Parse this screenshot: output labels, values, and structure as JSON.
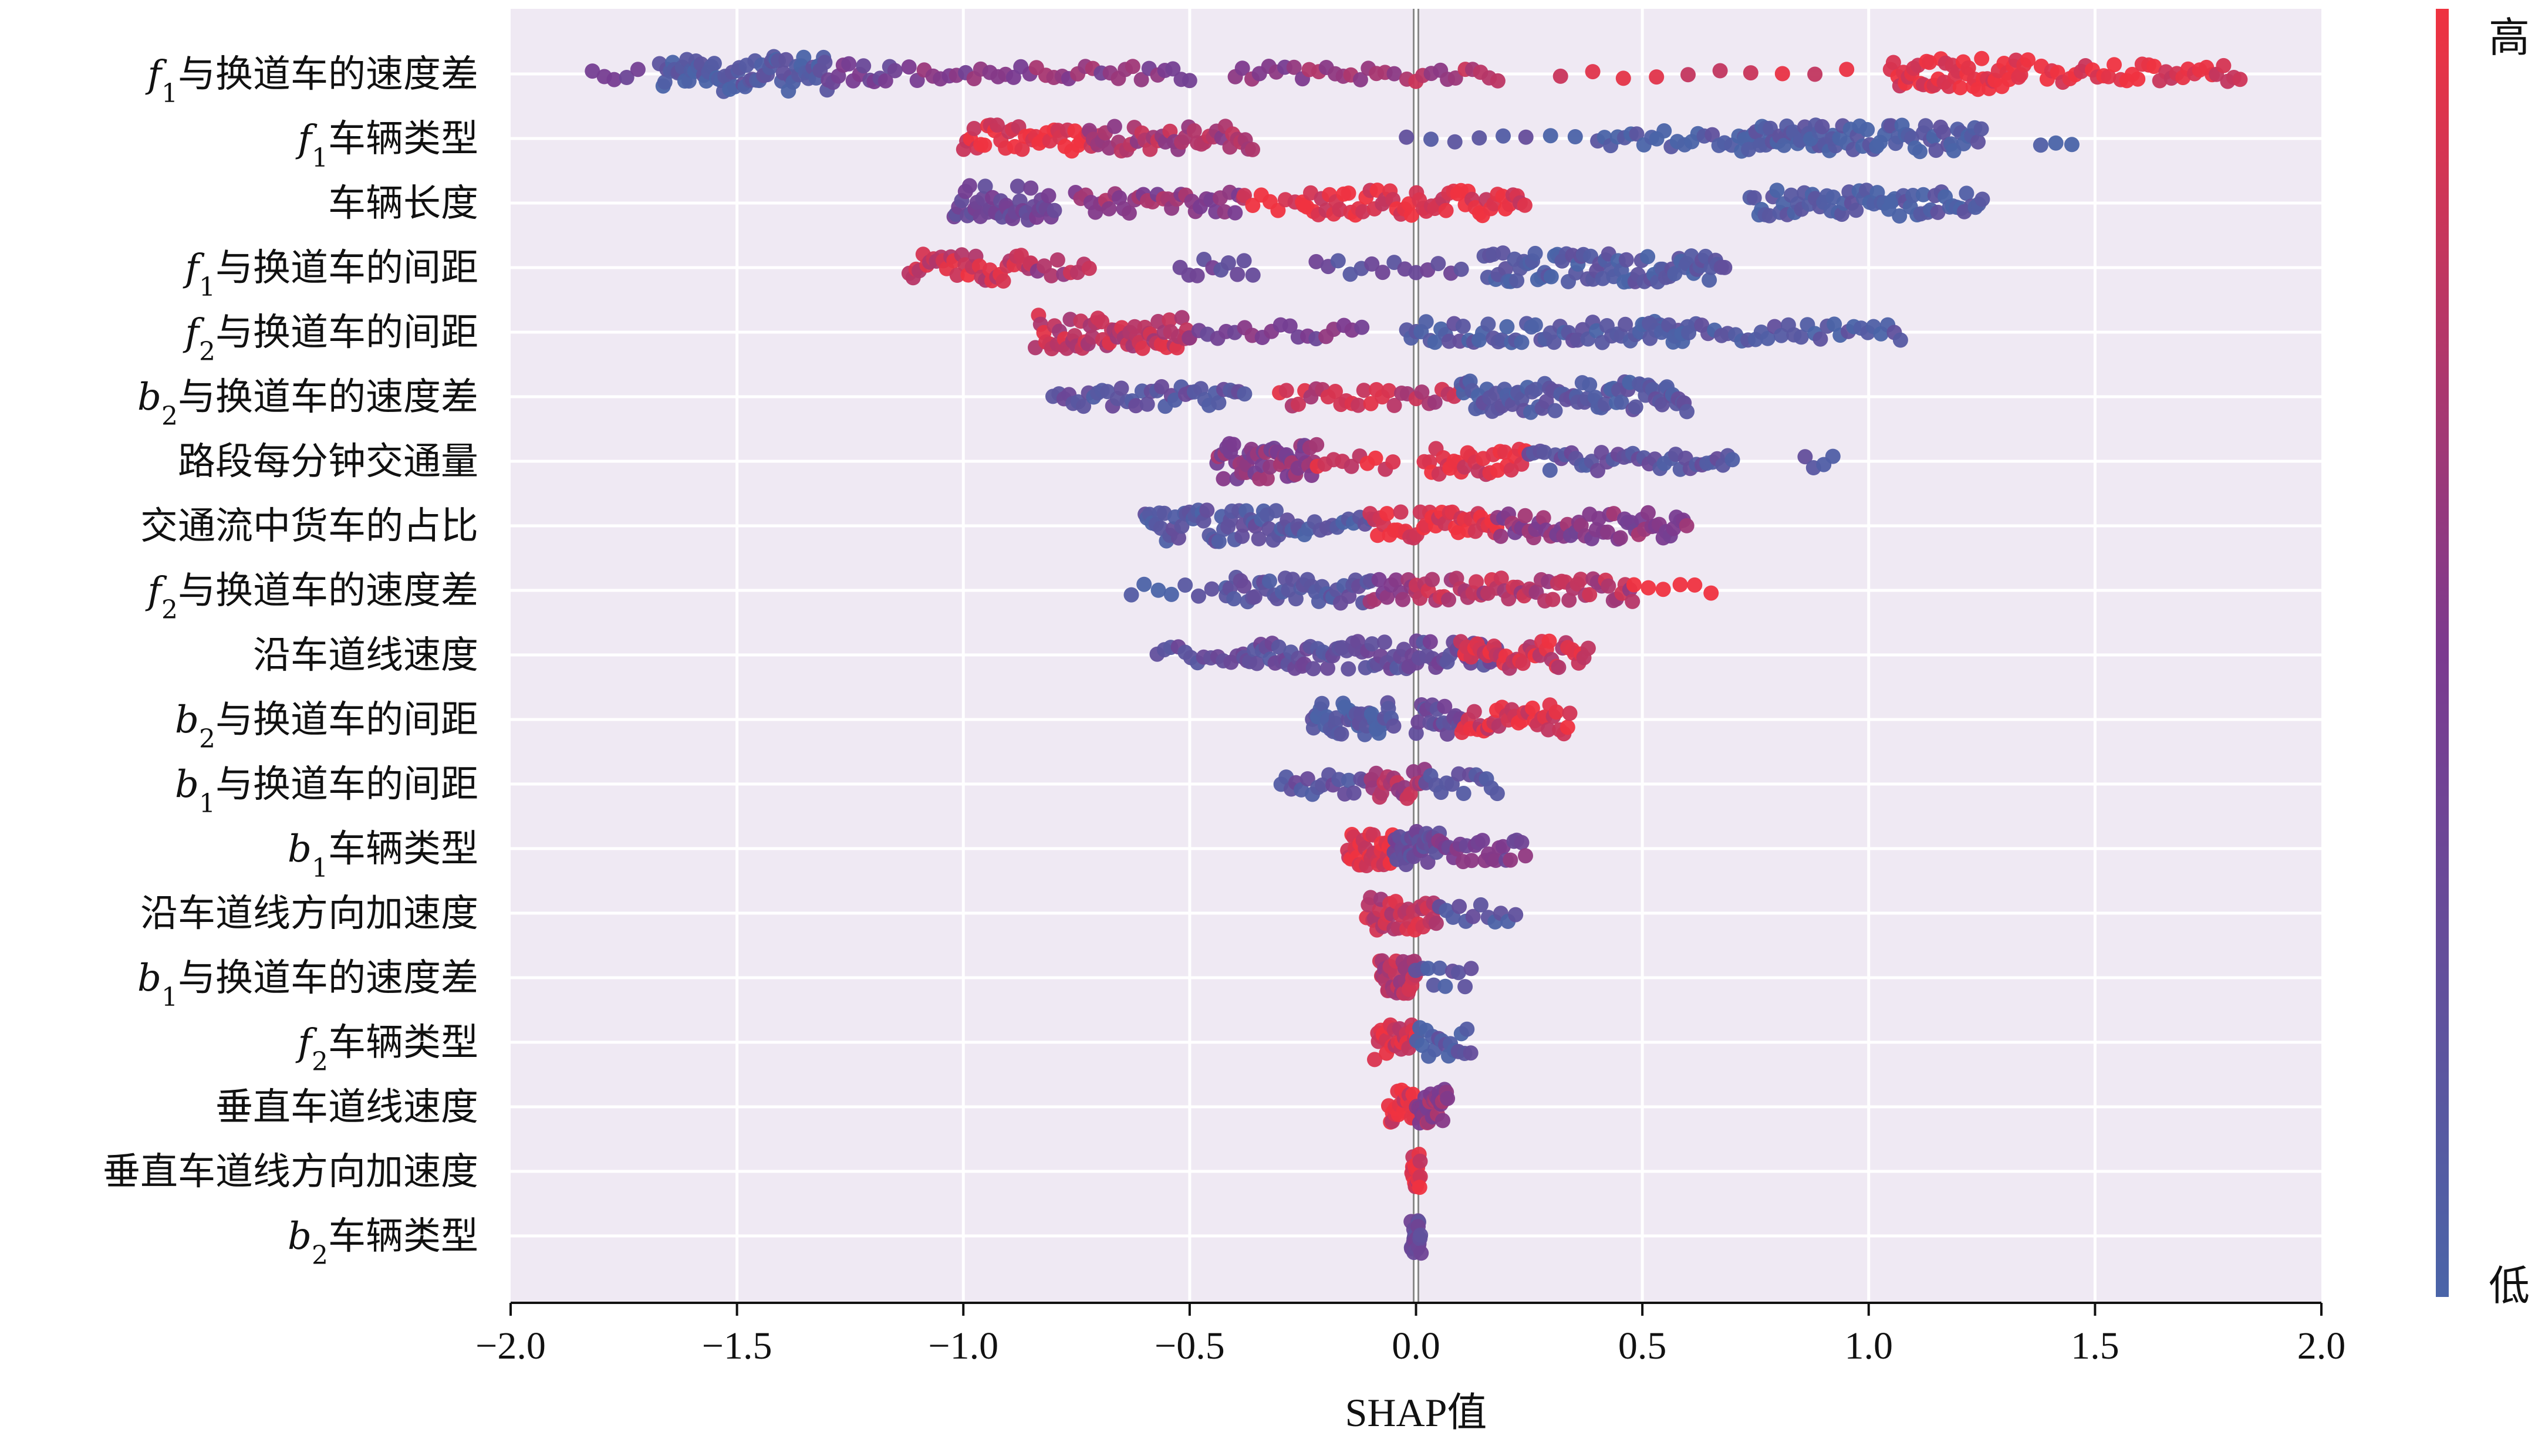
{
  "chart_data": {
    "type": "scatter",
    "subtype": "shap-beeswarm",
    "title": "",
    "xlabel": "SHAP值",
    "ylabel": "",
    "xlim": [
      -2.0,
      2.0
    ],
    "xticks": [
      -2.0,
      -1.5,
      -1.0,
      -0.5,
      0.0,
      0.5,
      1.0,
      1.5,
      2.0
    ],
    "xtick_labels": [
      "−2.0",
      "−1.5",
      "−1.0",
      "−0.5",
      "0.0",
      "0.5",
      "1.0",
      "1.5",
      "2.0"
    ],
    "grid": true,
    "colorbar": {
      "high_label": "高",
      "low_label": "低",
      "high_color": "#ef3340",
      "low_color": "#4a64a8",
      "mid_color": "#7b3a8f"
    },
    "background_color": "#efe9f3",
    "features": [
      {
        "name": "f1与换道车的速度差",
        "base": "f",
        "sub": "1",
        "suffix": "与换道车的速度差",
        "clusters": [
          {
            "from": -1.82,
            "to": -1.72,
            "n": 5,
            "color": 0.4
          },
          {
            "from": -1.67,
            "to": -1.3,
            "n": 70,
            "color": 0.1
          },
          {
            "from": -1.3,
            "to": -1.15,
            "n": 14,
            "color": 0.4
          },
          {
            "from": -1.12,
            "to": -0.5,
            "n": 36,
            "color": 0.55
          },
          {
            "from": -0.4,
            "to": -0.05,
            "n": 20,
            "color": 0.6
          },
          {
            "from": -0.02,
            "to": 0.18,
            "n": 12,
            "color": 0.7
          },
          {
            "from": 0.32,
            "to": 0.95,
            "n": 10,
            "color": 0.95
          },
          {
            "from": 1.05,
            "to": 1.35,
            "n": 48,
            "color": 0.95
          },
          {
            "from": 1.38,
            "to": 1.82,
            "n": 36,
            "color": 0.95
          }
        ]
      },
      {
        "name": "f1车辆类型",
        "base": "f",
        "sub": "1",
        "suffix": "车辆类型",
        "clusters": [
          {
            "from": -1.0,
            "to": -0.7,
            "n": 40,
            "color": 0.95
          },
          {
            "from": -0.72,
            "to": -0.36,
            "n": 42,
            "color": 0.7
          },
          {
            "from": -0.02,
            "to": 0.35,
            "n": 8,
            "color": 0.15
          },
          {
            "from": 0.4,
            "to": 0.92,
            "n": 36,
            "color": 0.08
          },
          {
            "from": 0.72,
            "to": 1.25,
            "n": 70,
            "color": 0.08
          },
          {
            "from": 1.38,
            "to": 1.45,
            "n": 3,
            "color": 0.1
          }
        ]
      },
      {
        "name": "车辆长度",
        "suffix": "车辆长度",
        "clusters": [
          {
            "from": -1.02,
            "to": -0.8,
            "n": 40,
            "color": 0.35
          },
          {
            "from": -0.75,
            "to": -0.38,
            "n": 36,
            "color": 0.6
          },
          {
            "from": -0.38,
            "to": -0.25,
            "n": 8,
            "color": 0.95
          },
          {
            "from": -0.25,
            "to": 0.24,
            "n": 60,
            "color": 0.95
          },
          {
            "from": 0.74,
            "to": 1.25,
            "n": 65,
            "color": 0.08
          }
        ]
      },
      {
        "name": "f1与换道车的间距",
        "base": "f",
        "sub": "1",
        "suffix": "与换道车的间距",
        "clusters": [
          {
            "from": -1.12,
            "to": -0.85,
            "n": 36,
            "color": 0.85
          },
          {
            "from": -0.85,
            "to": -0.72,
            "n": 10,
            "color": 0.7
          },
          {
            "from": -0.52,
            "to": -0.36,
            "n": 10,
            "color": 0.3
          },
          {
            "from": -0.22,
            "to": 0.1,
            "n": 14,
            "color": 0.25
          },
          {
            "from": 0.15,
            "to": 0.68,
            "n": 80,
            "color": 0.1
          }
        ]
      },
      {
        "name": "f2与换道车的间距",
        "base": "f",
        "sub": "2",
        "suffix": "与换道车的间距",
        "clusters": [
          {
            "from": -0.84,
            "to": -0.5,
            "n": 60,
            "color": 0.8
          },
          {
            "from": -0.5,
            "to": -0.12,
            "n": 20,
            "color": 0.45
          },
          {
            "from": -0.02,
            "to": 0.6,
            "n": 60,
            "color": 0.12
          },
          {
            "from": 0.5,
            "to": 1.07,
            "n": 40,
            "color": 0.1
          }
        ]
      },
      {
        "name": "b2与换道车的速度差",
        "base": "b",
        "sub": "2",
        "suffix": "与换道车的速度差",
        "clusters": [
          {
            "from": -0.8,
            "to": -0.38,
            "n": 40,
            "color": 0.2
          },
          {
            "from": -0.3,
            "to": -0.02,
            "n": 22,
            "color": 0.8
          },
          {
            "from": 0.0,
            "to": 0.1,
            "n": 8,
            "color": 0.75
          },
          {
            "from": 0.1,
            "to": 0.6,
            "n": 80,
            "color": 0.12
          }
        ]
      },
      {
        "name": "路段每分钟交通量",
        "suffix": "路段每分钟交通量",
        "clusters": [
          {
            "from": -0.44,
            "to": -0.22,
            "n": 50,
            "color": 0.55
          },
          {
            "from": -0.22,
            "to": -0.05,
            "n": 10,
            "color": 0.9
          },
          {
            "from": 0.02,
            "to": 0.25,
            "n": 30,
            "color": 0.92
          },
          {
            "from": 0.25,
            "to": 0.7,
            "n": 40,
            "color": 0.2
          },
          {
            "from": 0.86,
            "to": 0.92,
            "n": 4,
            "color": 0.15
          }
        ]
      },
      {
        "name": "交通流中货车的占比",
        "suffix": "交通流中货车的占比",
        "clusters": [
          {
            "from": -0.6,
            "to": -0.26,
            "n": 55,
            "color": 0.15
          },
          {
            "from": -0.26,
            "to": -0.1,
            "n": 14,
            "color": 0.1
          },
          {
            "from": -0.1,
            "to": 0.18,
            "n": 40,
            "color": 0.95
          },
          {
            "from": 0.18,
            "to": 0.6,
            "n": 55,
            "color": 0.55
          }
        ]
      },
      {
        "name": "f2与换道车的速度差",
        "base": "f",
        "sub": "2",
        "suffix": "与换道车的速度差",
        "clusters": [
          {
            "from": -0.63,
            "to": -0.42,
            "n": 8,
            "color": 0.12
          },
          {
            "from": -0.42,
            "to": -0.1,
            "n": 40,
            "color": 0.18
          },
          {
            "from": -0.1,
            "to": 0.0,
            "n": 12,
            "color": 0.6
          },
          {
            "from": 0.0,
            "to": 0.48,
            "n": 55,
            "color": 0.75
          },
          {
            "from": 0.48,
            "to": 0.65,
            "n": 6,
            "color": 0.95
          }
        ]
      },
      {
        "name": "沿车道线速度",
        "suffix": "沿车道线速度",
        "clusters": [
          {
            "from": -0.57,
            "to": -0.38,
            "n": 14,
            "color": 0.25
          },
          {
            "from": -0.38,
            "to": 0.0,
            "n": 55,
            "color": 0.25
          },
          {
            "from": 0.0,
            "to": 0.18,
            "n": 25,
            "color": 0.3
          },
          {
            "from": 0.1,
            "to": 0.38,
            "n": 40,
            "color": 0.85
          }
        ]
      },
      {
        "name": "b2与换道车的间距",
        "base": "b",
        "sub": "2",
        "suffix": "与换道车的间距",
        "clusters": [
          {
            "from": -0.23,
            "to": -0.05,
            "n": 40,
            "color": 0.1
          },
          {
            "from": 0.0,
            "to": 0.1,
            "n": 18,
            "color": 0.3
          },
          {
            "from": 0.1,
            "to": 0.34,
            "n": 35,
            "color": 0.9
          }
        ]
      },
      {
        "name": "b1与换道车的间距",
        "base": "b",
        "sub": "1",
        "suffix": "与换道车的间距",
        "clusters": [
          {
            "from": -0.3,
            "to": -0.1,
            "n": 18,
            "color": 0.2
          },
          {
            "from": -0.1,
            "to": 0.02,
            "n": 20,
            "color": 0.7
          },
          {
            "from": 0.02,
            "to": 0.18,
            "n": 14,
            "color": 0.15
          }
        ]
      },
      {
        "name": "b1车辆类型",
        "base": "b",
        "sub": "1",
        "suffix": "车辆类型",
        "clusters": [
          {
            "from": -0.15,
            "to": -0.05,
            "n": 30,
            "color": 0.95
          },
          {
            "from": -0.05,
            "to": 0.05,
            "n": 30,
            "color": 0.3
          },
          {
            "from": 0.05,
            "to": 0.24,
            "n": 25,
            "color": 0.45
          }
        ]
      },
      {
        "name": "沿车道线方向加速度",
        "suffix": "沿车道线方向加速度",
        "clusters": [
          {
            "from": -0.11,
            "to": 0.05,
            "n": 35,
            "color": 0.8
          },
          {
            "from": 0.05,
            "to": 0.22,
            "n": 12,
            "color": 0.15
          }
        ]
      },
      {
        "name": "b1与换道车的速度差",
        "base": "b",
        "sub": "1",
        "suffix": "与换道车的速度差",
        "clusters": [
          {
            "from": -0.08,
            "to": 0.0,
            "n": 30,
            "color": 0.75
          },
          {
            "from": 0.0,
            "to": 0.12,
            "n": 10,
            "color": 0.12
          }
        ]
      },
      {
        "name": "f2车辆类型",
        "base": "f",
        "sub": "2",
        "suffix": "车辆类型",
        "clusters": [
          {
            "from": -0.09,
            "to": 0.0,
            "n": 25,
            "color": 0.9
          },
          {
            "from": 0.0,
            "to": 0.12,
            "n": 18,
            "color": 0.12
          }
        ]
      },
      {
        "name": "垂直车道线速度",
        "suffix": "垂直车道线速度",
        "clusters": [
          {
            "from": -0.06,
            "to": 0.0,
            "n": 20,
            "color": 0.92
          },
          {
            "from": 0.0,
            "to": 0.07,
            "n": 30,
            "color": 0.6
          }
        ]
      },
      {
        "name": "垂直车道线方向加速度",
        "suffix": "垂直车道线方向加速度",
        "clusters": [
          {
            "from": -0.01,
            "to": 0.01,
            "n": 22,
            "color": 0.9
          }
        ]
      },
      {
        "name": "b2车辆类型",
        "base": "b",
        "sub": "2",
        "suffix": "车辆类型",
        "clusters": [
          {
            "from": -0.01,
            "to": 0.01,
            "n": 22,
            "color": 0.3
          }
        ]
      }
    ]
  }
}
